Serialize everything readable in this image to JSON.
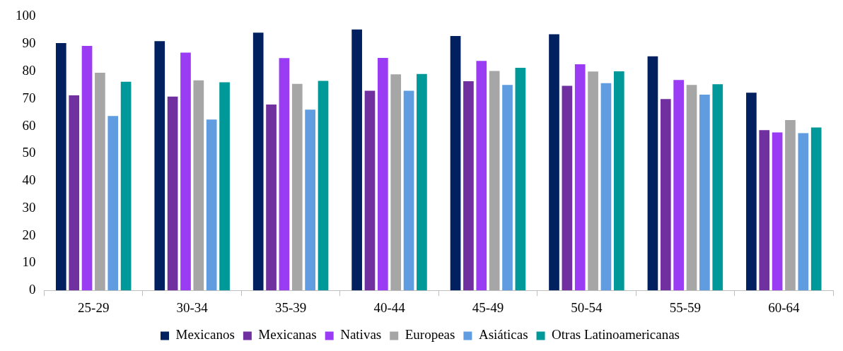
{
  "chart_data": {
    "type": "bar",
    "categories": [
      "25-29",
      "30-34",
      "35-39",
      "40-44",
      "45-49",
      "50-54",
      "55-59",
      "60-64"
    ],
    "series": [
      {
        "name": "Mexicanos",
        "color": "#002060",
        "values": [
          90.3,
          91,
          94.1,
          95.3,
          92.9,
          93.5,
          85.5,
          72.2
        ]
      },
      {
        "name": "Mexicanas",
        "color": "#7030a0",
        "values": [
          71.2,
          70.8,
          67.9,
          72.9,
          76.4,
          74.7,
          69.9,
          58.5
        ]
      },
      {
        "name": "Nativas",
        "color": "#9b3cf5",
        "values": [
          89.3,
          86.8,
          84.8,
          84.9,
          83.8,
          82.6,
          76.8,
          57.7
        ]
      },
      {
        "name": "Europeas",
        "color": "#a6a6a6",
        "values": [
          79.5,
          76.7,
          75.4,
          78.9,
          80.1,
          79.9,
          75,
          62.2
        ]
      },
      {
        "name": "Asiáticas",
        "color": "#5f9de0",
        "values": [
          63.7,
          62.4,
          66,
          72.9,
          75,
          75.7,
          71.5,
          57.4
        ]
      },
      {
        "name": "Otras Latinoamericanas",
        "color": "#009999",
        "values": [
          76.2,
          76,
          76.5,
          79,
          81.3,
          80,
          75.3,
          59.5
        ]
      }
    ],
    "ylim": [
      0,
      100
    ],
    "yticks": [
      0,
      10,
      20,
      30,
      40,
      50,
      60,
      70,
      80,
      90,
      100
    ],
    "grid": false,
    "legend": "bottom"
  }
}
